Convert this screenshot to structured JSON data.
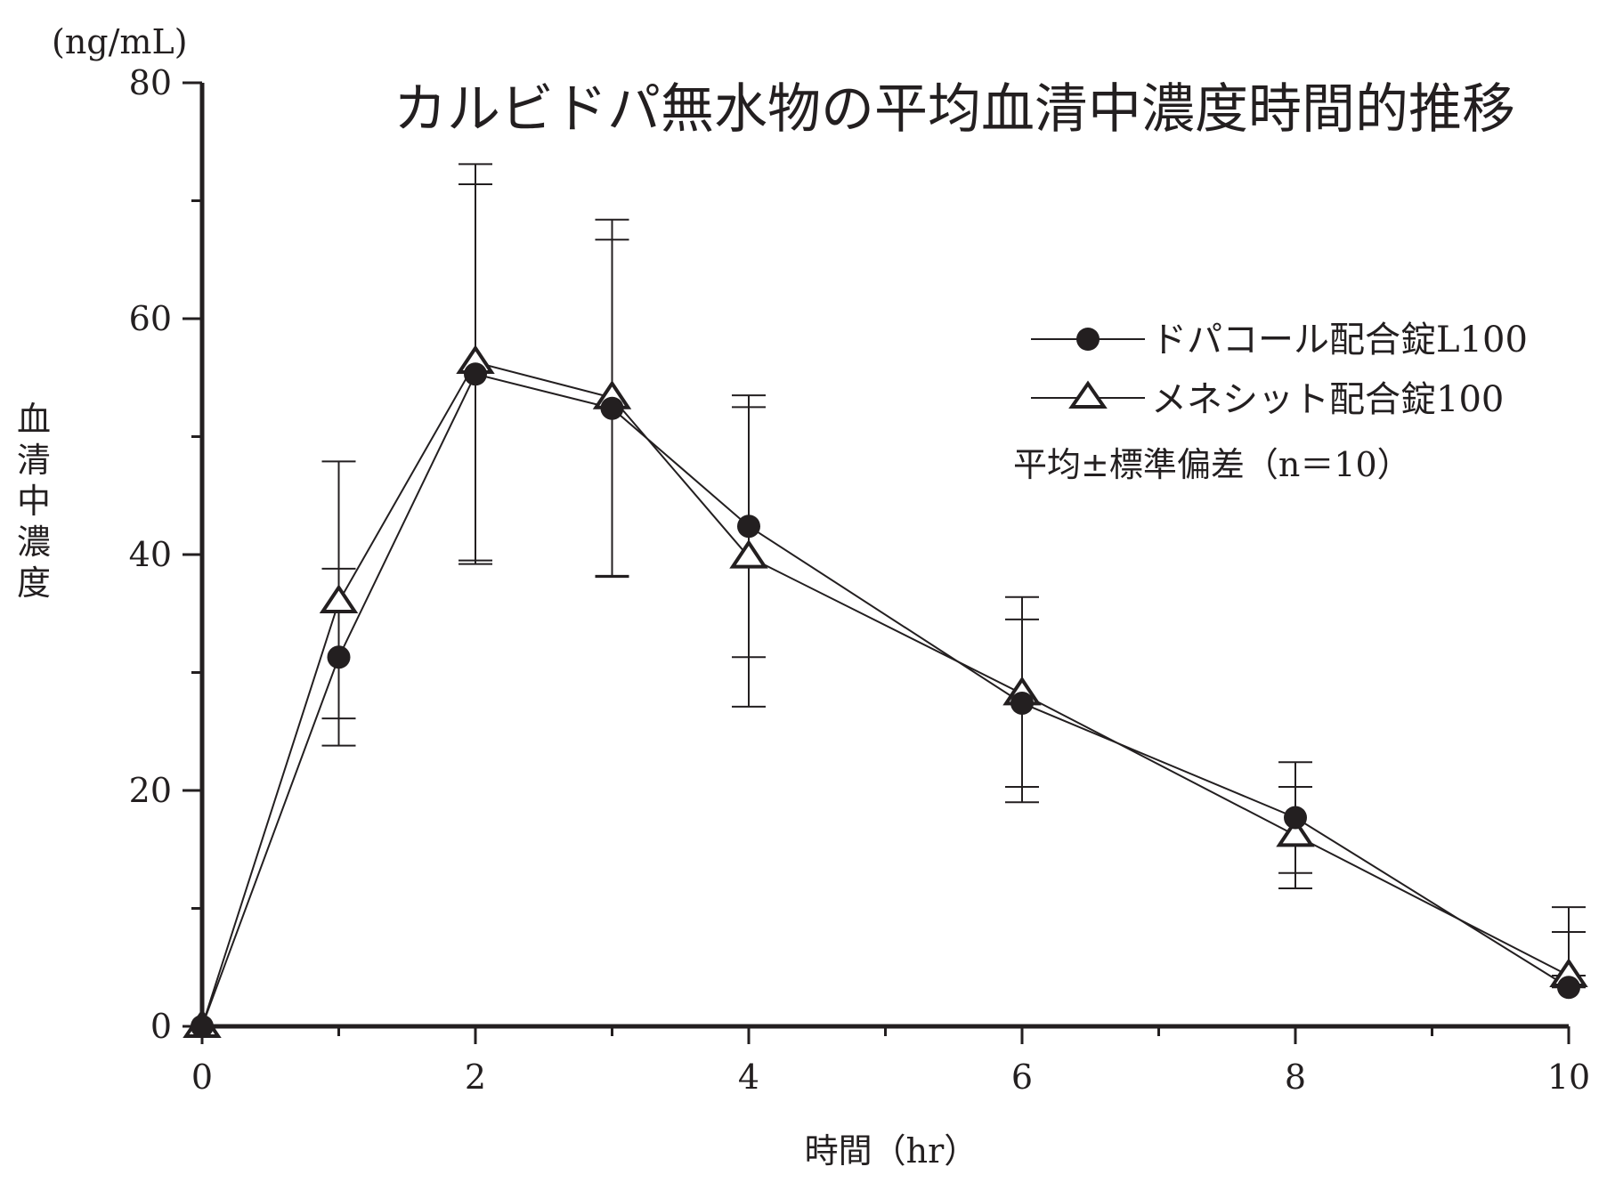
{
  "chart_data": {
    "type": "line",
    "title": "カルビドパ無水物の平均血清中濃度時間的推移",
    "xlabel": "時間（hr）",
    "ylabel": "血清中濃度",
    "yunit": "(ng/mL)",
    "xlim": [
      0,
      10
    ],
    "ylim": [
      0,
      80
    ],
    "xticks": [
      0,
      2,
      4,
      6,
      8,
      10
    ],
    "yticks": [
      0,
      20,
      40,
      60,
      80
    ],
    "grid": false,
    "legend_position": "top-right",
    "note": "平均±標準偏差（n＝10）",
    "series": [
      {
        "name": "ドパコール配合錠L100",
        "marker": "filled-circle",
        "x": [
          0,
          1,
          2,
          3,
          4,
          6,
          8,
          10
        ],
        "y": [
          0,
          31.3,
          55.3,
          52.4,
          42.4,
          27.4,
          17.7,
          3.3
        ],
        "err_low": [
          0,
          23.8,
          39.2,
          38.1,
          31.3,
          20.3,
          13.0,
          3.3
        ],
        "err_high": [
          0,
          38.8,
          71.4,
          66.7,
          53.5,
          34.5,
          22.4,
          8.0
        ]
      },
      {
        "name": "メネシット配合錠100",
        "marker": "open-triangle",
        "x": [
          0,
          1,
          2,
          3,
          4,
          6,
          8,
          10
        ],
        "y": [
          0,
          36.0,
          56.3,
          53.3,
          39.8,
          28.2,
          16.2,
          4.3
        ],
        "err_low": [
          0,
          26.1,
          39.5,
          38.2,
          27.1,
          19.0,
          11.7,
          4.3
        ],
        "err_high": [
          0,
          47.9,
          73.1,
          68.4,
          52.5,
          36.4,
          20.3,
          10.1
        ]
      }
    ]
  }
}
